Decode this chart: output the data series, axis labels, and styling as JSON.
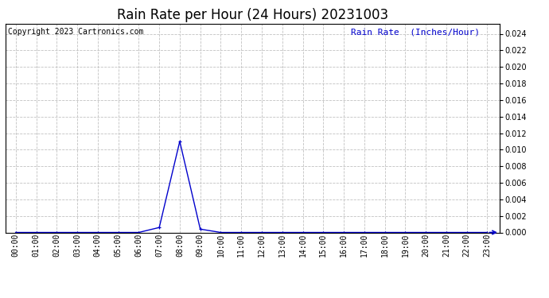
{
  "title": "Rain Rate per Hour (24 Hours) 20231003",
  "copyright_text": "Copyright 2023 Cartronics.com",
  "legend_label": "Rain Rate  (Inches/Hour)",
  "hours": [
    0,
    1,
    2,
    3,
    4,
    5,
    6,
    7,
    8,
    9,
    10,
    11,
    12,
    13,
    14,
    15,
    16,
    17,
    18,
    19,
    20,
    21,
    22,
    23
  ],
  "values": [
    0,
    0,
    0,
    0,
    0,
    0,
    0,
    0.0006,
    0.011,
    0.0004,
    0,
    0,
    0,
    0,
    0,
    0,
    0,
    0,
    0,
    0,
    0,
    0,
    0,
    0
  ],
  "ylim": [
    0,
    0.0252
  ],
  "yticks": [
    0.0,
    0.002,
    0.004,
    0.006,
    0.008,
    0.01,
    0.012,
    0.014,
    0.016,
    0.018,
    0.02,
    0.022,
    0.024
  ],
  "line_color": "#0000cc",
  "grid_color": "#bbbbbb",
  "background_color": "#ffffff",
  "title_fontsize": 12,
  "copyright_fontsize": 7,
  "legend_fontsize": 8,
  "tick_fontsize": 7,
  "fig_width": 6.9,
  "fig_height": 3.75,
  "dpi": 100
}
